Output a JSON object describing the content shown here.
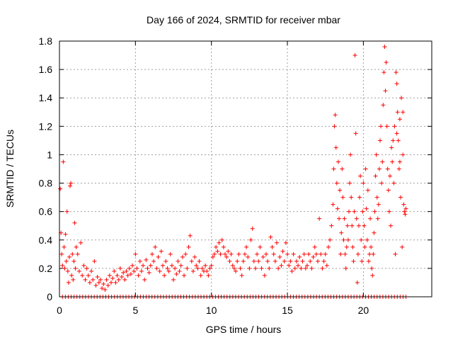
{
  "chart_data": {
    "type": "scatter",
    "title": "Day 166 of 2024, SRMTID for receiver mbar",
    "xlabel": "GPS time / hours",
    "ylabel": "SRMTID / TECUs",
    "xlim": [
      0,
      24.5
    ],
    "ylim": [
      0,
      1.8
    ],
    "x_ticks": [
      0,
      5,
      10,
      15,
      20
    ],
    "x_tick_labels": [
      "0",
      "5",
      "10",
      "15",
      "20"
    ],
    "y_ticks": [
      0,
      0.2,
      0.4,
      0.6,
      0.8,
      1.0,
      1.2,
      1.4,
      1.6,
      1.8
    ],
    "y_tick_labels": [
      "0",
      "0.2",
      "0.4",
      "0.6",
      "0.8",
      "1",
      "1.2",
      "1.4",
      "1.6",
      "1.8"
    ],
    "grid": true,
    "marker": "+",
    "series_color": "#ff0000",
    "series": [
      {
        "name": "SRMTID",
        "points": [
          [
            0.05,
            0.76
          ],
          [
            0.1,
            0.45
          ],
          [
            0.15,
            0.3
          ],
          [
            0.2,
            0.22
          ],
          [
            0.25,
            0.95
          ],
          [
            0.3,
            0.35
          ],
          [
            0.35,
            0.2
          ],
          [
            0.4,
            0.44
          ],
          [
            0.45,
            0.25
          ],
          [
            0.5,
            0.6
          ],
          [
            0.55,
            0.18
          ],
          [
            0.6,
            0.1
          ],
          [
            0.65,
            0.28
          ],
          [
            0.7,
            0.78
          ],
          [
            0.75,
            0.8
          ],
          [
            0.8,
            0.15
          ],
          [
            0.85,
            0.3
          ],
          [
            0.9,
            0.12
          ],
          [
            0.95,
            0.25
          ],
          [
            1.0,
            0.52
          ],
          [
            1.05,
            0.2
          ],
          [
            1.1,
            0.35
          ],
          [
            1.2,
            0.3
          ],
          [
            1.3,
            0.18
          ],
          [
            1.4,
            0.38
          ],
          [
            1.5,
            0.15
          ],
          [
            1.6,
            0.22
          ],
          [
            1.7,
            0.12
          ],
          [
            1.8,
            0.2
          ],
          [
            1.9,
            0.15
          ],
          [
            2.0,
            0.1
          ],
          [
            2.1,
            0.18
          ],
          [
            2.2,
            0.12
          ],
          [
            2.3,
            0.25
          ],
          [
            2.4,
            0.08
          ],
          [
            2.5,
            0.14
          ],
          [
            2.6,
            0.1
          ],
          [
            2.7,
            0.12
          ],
          [
            2.8,
            0.06
          ],
          [
            2.9,
            0.09
          ],
          [
            3.0,
            0.05
          ],
          [
            3.1,
            0.12
          ],
          [
            3.2,
            0.08
          ],
          [
            3.3,
            0.15
          ],
          [
            3.4,
            0.1
          ],
          [
            3.5,
            0.13
          ],
          [
            3.6,
            0.18
          ],
          [
            3.7,
            0.1
          ],
          [
            3.8,
            0.15
          ],
          [
            3.9,
            0.12
          ],
          [
            4.0,
            0.2
          ],
          [
            4.1,
            0.14
          ],
          [
            4.2,
            0.17
          ],
          [
            4.3,
            0.12
          ],
          [
            4.4,
            0.18
          ],
          [
            4.5,
            0.15
          ],
          [
            4.6,
            0.2
          ],
          [
            4.7,
            0.16
          ],
          [
            4.8,
            0.22
          ],
          [
            4.9,
            0.18
          ],
          [
            5.0,
            0.3
          ],
          [
            5.1,
            0.2
          ],
          [
            5.2,
            0.15
          ],
          [
            5.3,
            0.25
          ],
          [
            5.4,
            0.18
          ],
          [
            5.5,
            0.22
          ],
          [
            5.6,
            0.12
          ],
          [
            5.7,
            0.26
          ],
          [
            5.8,
            0.2
          ],
          [
            5.9,
            0.17
          ],
          [
            6.0,
            0.22
          ],
          [
            6.1,
            0.3
          ],
          [
            6.2,
            0.25
          ],
          [
            6.3,
            0.35
          ],
          [
            6.4,
            0.2
          ],
          [
            6.5,
            0.28
          ],
          [
            6.6,
            0.18
          ],
          [
            6.7,
            0.32
          ],
          [
            6.8,
            0.22
          ],
          [
            6.9,
            0.15
          ],
          [
            7.0,
            0.25
          ],
          [
            7.1,
            0.2
          ],
          [
            7.2,
            0.18
          ],
          [
            7.3,
            0.3
          ],
          [
            7.4,
            0.22
          ],
          [
            7.5,
            0.12
          ],
          [
            7.6,
            0.2
          ],
          [
            7.7,
            0.16
          ],
          [
            7.8,
            0.25
          ],
          [
            7.9,
            0.18
          ],
          [
            8.0,
            0.22
          ],
          [
            8.1,
            0.28
          ],
          [
            8.2,
            0.15
          ],
          [
            8.3,
            0.3
          ],
          [
            8.4,
            0.2
          ],
          [
            8.5,
            0.35
          ],
          [
            8.6,
            0.43
          ],
          [
            8.7,
            0.25
          ],
          [
            8.8,
            0.18
          ],
          [
            8.9,
            0.28
          ],
          [
            9.0,
            0.22
          ],
          [
            9.1,
            0.2
          ],
          [
            9.2,
            0.25
          ],
          [
            9.3,
            0.15
          ],
          [
            9.4,
            0.2
          ],
          [
            9.5,
            0.18
          ],
          [
            9.6,
            0.22
          ],
          [
            9.7,
            0.18
          ],
          [
            9.8,
            0.15
          ],
          [
            9.9,
            0.2
          ],
          [
            10.0,
            0.22
          ],
          [
            10.1,
            0.28
          ],
          [
            10.2,
            0.3
          ],
          [
            10.3,
            0.35
          ],
          [
            10.4,
            0.32
          ],
          [
            10.5,
            0.38
          ],
          [
            10.6,
            0.3
          ],
          [
            10.7,
            0.4
          ],
          [
            10.8,
            0.35
          ],
          [
            10.9,
            0.3
          ],
          [
            11.0,
            0.28
          ],
          [
            11.1,
            0.32
          ],
          [
            11.2,
            0.25
          ],
          [
            11.3,
            0.3
          ],
          [
            11.4,
            0.22
          ],
          [
            11.5,
            0.2
          ],
          [
            11.6,
            0.18
          ],
          [
            11.7,
            0.25
          ],
          [
            11.8,
            0.3
          ],
          [
            11.9,
            0.2
          ],
          [
            12.0,
            0.15
          ],
          [
            12.1,
            0.25
          ],
          [
            12.2,
            0.3
          ],
          [
            12.3,
            0.35
          ],
          [
            12.4,
            0.28
          ],
          [
            12.5,
            0.2
          ],
          [
            12.6,
            0.4
          ],
          [
            12.7,
            0.48
          ],
          [
            12.8,
            0.25
          ],
          [
            12.9,
            0.2
          ],
          [
            13.0,
            0.3
          ],
          [
            13.1,
            0.25
          ],
          [
            13.2,
            0.35
          ],
          [
            13.3,
            0.2
          ],
          [
            13.4,
            0.28
          ],
          [
            13.5,
            0.15
          ],
          [
            13.6,
            0.3
          ],
          [
            13.7,
            0.25
          ],
          [
            13.8,
            0.2
          ],
          [
            13.9,
            0.42
          ],
          [
            14.0,
            0.35
          ],
          [
            14.1,
            0.3
          ],
          [
            14.2,
            0.25
          ],
          [
            14.3,
            0.38
          ],
          [
            14.4,
            0.2
          ],
          [
            14.5,
            0.28
          ],
          [
            14.6,
            0.22
          ],
          [
            14.7,
            0.32
          ],
          [
            14.8,
            0.25
          ],
          [
            14.9,
            0.38
          ],
          [
            15.0,
            0.3
          ],
          [
            15.1,
            0.22
          ],
          [
            15.2,
            0.25
          ],
          [
            15.3,
            0.18
          ],
          [
            15.4,
            0.3
          ],
          [
            15.5,
            0.2
          ],
          [
            15.6,
            0.25
          ],
          [
            15.7,
            0.22
          ],
          [
            15.8,
            0.28
          ],
          [
            15.9,
            0.2
          ],
          [
            16.0,
            0.25
          ],
          [
            16.1,
            0.3
          ],
          [
            16.2,
            0.2
          ],
          [
            16.3,
            0.22
          ],
          [
            16.4,
            0.3
          ],
          [
            16.5,
            0.25
          ],
          [
            16.6,
            0.2
          ],
          [
            16.7,
            0.28
          ],
          [
            16.8,
            0.35
          ],
          [
            16.9,
            0.3
          ],
          [
            17.0,
            0.25
          ],
          [
            17.1,
            0.55
          ],
          [
            17.2,
            0.3
          ],
          [
            17.3,
            0.2
          ],
          [
            17.4,
            0.25
          ],
          [
            17.5,
            0.3
          ],
          [
            17.6,
            0.22
          ],
          [
            17.7,
            0.35
          ],
          [
            17.8,
            0.4
          ],
          [
            17.9,
            0.5
          ],
          [
            18.0,
            0.65
          ],
          [
            18.05,
            0.9
          ],
          [
            18.1,
            1.2
          ],
          [
            18.15,
            1.28
          ],
          [
            18.2,
            1.05
          ],
          [
            18.25,
            0.8
          ],
          [
            18.3,
            0.62
          ],
          [
            18.35,
            0.95
          ],
          [
            18.4,
            0.55
          ],
          [
            18.45,
            0.75
          ],
          [
            18.5,
            0.3
          ],
          [
            18.55,
            0.45
          ],
          [
            18.6,
            0.9
          ],
          [
            18.65,
            0.7
          ],
          [
            18.7,
            0.4
          ],
          [
            18.75,
            0.55
          ],
          [
            18.8,
            0.3
          ],
          [
            18.85,
            0.2
          ],
          [
            18.9,
            0.35
          ],
          [
            18.95,
            0.5
          ],
          [
            19.0,
            0.4
          ],
          [
            19.05,
            0.6
          ],
          [
            19.1,
            0.8
          ],
          [
            19.15,
            1.0
          ],
          [
            19.2,
            0.7
          ],
          [
            19.25,
            0.5
          ],
          [
            19.3,
            0.35
          ],
          [
            19.35,
            0.25
          ],
          [
            19.4,
            0.6
          ],
          [
            19.45,
            1.7
          ],
          [
            19.5,
            1.15
          ],
          [
            19.55,
            0.55
          ],
          [
            19.6,
            0.1
          ],
          [
            19.65,
            0.3
          ],
          [
            19.7,
            0.5
          ],
          [
            19.75,
            0.7
          ],
          [
            19.8,
            0.85
          ],
          [
            19.85,
            0.4
          ],
          [
            19.9,
            0.25
          ],
          [
            19.95,
            0.6
          ],
          [
            20.0,
            0.8
          ],
          [
            20.05,
            0.5
          ],
          [
            20.1,
            0.35
          ],
          [
            20.15,
            0.9
          ],
          [
            20.2,
            0.62
          ],
          [
            20.25,
            0.4
          ],
          [
            20.3,
            0.75
          ],
          [
            20.35,
            0.25
          ],
          [
            20.4,
            0.3
          ],
          [
            20.45,
            0.55
          ],
          [
            20.5,
            0.35
          ],
          [
            20.55,
            0.2
          ],
          [
            20.6,
            0.15
          ],
          [
            20.65,
            0.3
          ],
          [
            20.7,
            0.45
          ],
          [
            20.75,
            0.6
          ],
          [
            20.8,
            0.85
          ],
          [
            20.85,
            1.0
          ],
          [
            20.9,
            0.7
          ],
          [
            20.95,
            0.55
          ],
          [
            21.0,
            0.65
          ],
          [
            21.05,
            0.9
          ],
          [
            21.1,
            1.1
          ],
          [
            21.15,
            1.2
          ],
          [
            21.2,
            0.8
          ],
          [
            21.25,
            0.95
          ],
          [
            21.3,
            1.35
          ],
          [
            21.35,
            1.58
          ],
          [
            21.4,
            1.76
          ],
          [
            21.45,
            1.45
          ],
          [
            21.5,
            1.65
          ],
          [
            21.55,
            1.2
          ],
          [
            21.6,
            0.9
          ],
          [
            21.65,
            0.75
          ],
          [
            21.7,
            0.6
          ],
          [
            21.75,
            0.85
          ],
          [
            21.8,
            0.5
          ],
          [
            21.85,
            1.05
          ],
          [
            21.9,
            0.95
          ],
          [
            21.95,
            1.1
          ],
          [
            22.0,
            0.8
          ],
          [
            22.05,
            1.2
          ],
          [
            22.1,
            0.3
          ],
          [
            22.15,
            1.58
          ],
          [
            22.2,
            1.5
          ],
          [
            22.25,
            1.3
          ],
          [
            22.3,
            1.1
          ],
          [
            22.35,
            0.9
          ],
          [
            22.4,
            1.25
          ],
          [
            22.45,
            0.7
          ],
          [
            22.5,
            1.4
          ],
          [
            22.55,
            0.35
          ],
          [
            22.6,
            1.0
          ],
          [
            22.65,
            0.65
          ],
          [
            22.7,
            0.6
          ],
          [
            22.75,
            0.58
          ],
          [
            22.8,
            0.62
          ],
          [
            22.6,
            1.3
          ],
          [
            22.4,
            0.95
          ],
          [
            22.2,
            1.15
          ]
        ]
      }
    ],
    "baseline_count": 120
  }
}
